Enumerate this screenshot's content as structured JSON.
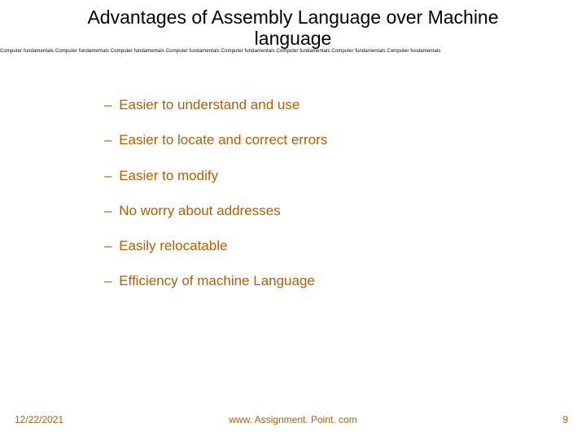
{
  "title_line1": "Advantages of Assembly Language over Machine",
  "title_line2": "language",
  "watermark_unit": "Computer fundamentals ",
  "watermark_repeat": 8,
  "bullets": [
    "Easier to understand and use",
    "Easier to locate and correct errors",
    "Easier to modify",
    "No worry about addresses",
    "Easily relocatable",
    "Efficiency of machine Language"
  ],
  "footer": {
    "date": "12/22/2021",
    "center": "www. Assignment. Point. com",
    "page": "9"
  },
  "colors": {
    "title": "#000000",
    "bullet": "#b85c00",
    "footer": "#b85c00",
    "background": "#ffffff"
  },
  "fonts": {
    "title_family": "Comic Sans MS",
    "title_size_pt": 17,
    "bullet_family": "Verdana",
    "bullet_size_pt": 13,
    "footer_size_pt": 9,
    "watermark_size_pt": 5
  }
}
